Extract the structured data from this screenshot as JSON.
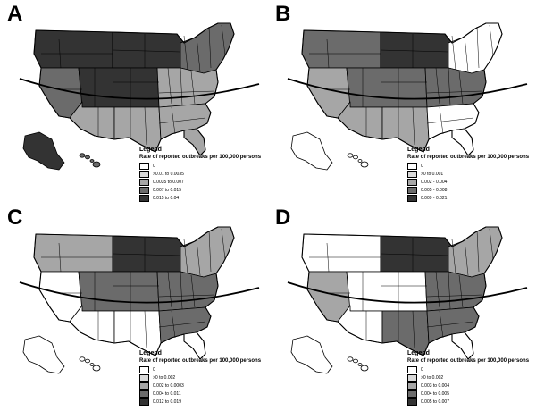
{
  "panels": [
    {
      "letter": "A",
      "legend_title": "Legend",
      "legend_subtitle": "Rate of reported outbreaks per 100,000 persons",
      "legend_items": [
        {
          "label": "0",
          "color": "#ffffff"
        },
        {
          "label": ">0.01 to 0.0035",
          "color": "#d9d9d9"
        },
        {
          "label": "0.0035 to 0.007",
          "color": "#a6a6a6"
        },
        {
          "label": "0.007 to 0.015",
          "color": "#6b6b6b"
        },
        {
          "label": "0.015 to 0.04",
          "color": "#333333"
        }
      ],
      "regions": {
        "nw": 4,
        "n": 4,
        "ne": 3,
        "w": 3,
        "c": 4,
        "e": 2,
        "sw": 2,
        "s": 2,
        "se": 2,
        "fl": 2,
        "ak": 4,
        "hi": 3
      }
    },
    {
      "letter": "B",
      "legend_title": "Legend",
      "legend_subtitle": "Rate of reported outbreaks per 100,000 persons",
      "legend_items": [
        {
          "label": "0",
          "color": "#ffffff"
        },
        {
          "label": ">0 to 0.001",
          "color": "#d9d9d9"
        },
        {
          "label": "0.002 - 0.004",
          "color": "#a6a6a6"
        },
        {
          "label": "0.005 - 0.008",
          "color": "#6b6b6b"
        },
        {
          "label": "0.009 - 0.021",
          "color": "#333333"
        }
      ],
      "regions": {
        "nw": 3,
        "n": 4,
        "ne": 0,
        "w": 2,
        "c": 3,
        "e": 3,
        "sw": 2,
        "s": 2,
        "se": 0,
        "fl": 0,
        "ak": 0,
        "hi": 0
      }
    },
    {
      "letter": "C",
      "legend_title": "Legend",
      "legend_subtitle": "Rate of reported outbreaks per 100,000 persons",
      "legend_items": [
        {
          "label": "0",
          "color": "#ffffff"
        },
        {
          "label": ">0 to 0.002",
          "color": "#d9d9d9"
        },
        {
          "label": "0.002 to 0.0003",
          "color": "#a6a6a6"
        },
        {
          "label": "0.004 to 0.011",
          "color": "#6b6b6b"
        },
        {
          "label": "0.012 to 0.019",
          "color": "#333333"
        }
      ],
      "regions": {
        "nw": 2,
        "n": 4,
        "ne": 2,
        "w": 0,
        "c": 3,
        "e": 3,
        "sw": 0,
        "s": 0,
        "se": 3,
        "fl": 0,
        "ak": 0,
        "hi": 0
      }
    },
    {
      "letter": "D",
      "legend_title": "Legend",
      "legend_subtitle": "Rate of reported outbreaks per 100,000 persons",
      "legend_items": [
        {
          "label": "0",
          "color": "#ffffff"
        },
        {
          "label": ">0 to 0.002",
          "color": "#d9d9d9"
        },
        {
          "label": "0.003 to 0.004",
          "color": "#a6a6a6"
        },
        {
          "label": "0.004 to 0.005",
          "color": "#6b6b6b"
        },
        {
          "label": "0.005 to 0.007",
          "color": "#333333"
        }
      ],
      "regions": {
        "nw": 0,
        "n": 4,
        "ne": 2,
        "w": 2,
        "c": 0,
        "e": 3,
        "sw": 0,
        "s": 3,
        "se": 3,
        "fl": 0,
        "ak": 0,
        "hi": 0
      }
    }
  ]
}
